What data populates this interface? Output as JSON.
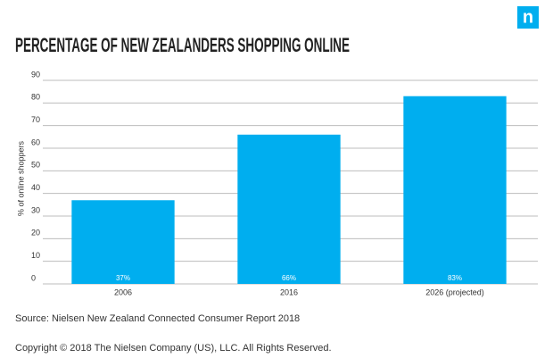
{
  "logo": "n",
  "chart_data": {
    "type": "bar",
    "title": "PERCENTAGE OF NEW ZEALANDERS SHOPPING ONLINE",
    "y_label": "% of online shoppers",
    "categories": [
      "2006",
      "2016",
      "2026 (projected)"
    ],
    "values": [
      37,
      66,
      83
    ],
    "value_labels": [
      "37%",
      "66%",
      "83%"
    ],
    "color": "#00aeef",
    "ylim": [
      0,
      90
    ],
    "yticks": [
      0,
      10,
      20,
      30,
      40,
      50,
      60,
      70,
      80,
      90
    ],
    "grid": true,
    "source": "Source: Nielsen New Zealand Connected Consumer Report 2018",
    "copyright": "Copyright © 2018 The Nielsen Company (US), LLC. All Rights Reserved."
  }
}
